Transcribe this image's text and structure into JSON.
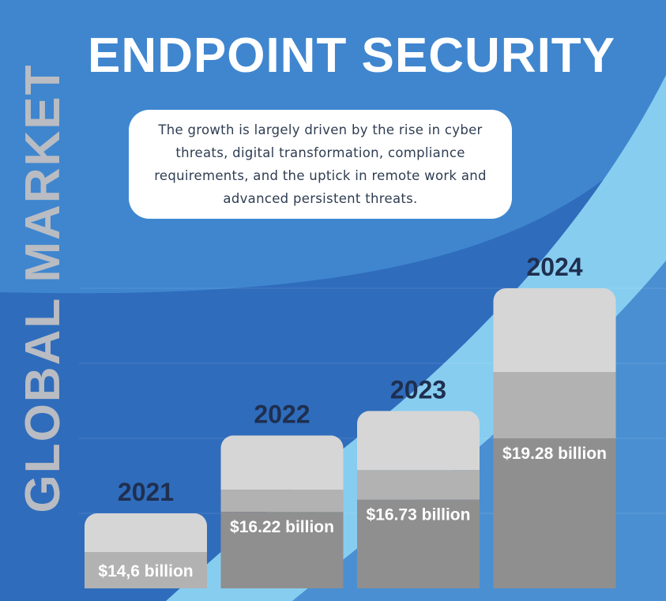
{
  "header": {
    "title": "ENDPOINT SECURITY",
    "side_label": "GLOBAL MARKET"
  },
  "callout": {
    "text": "The growth is largely driven by the rise in cyber threats, digital transformation, compliance requirements, and the uptick in remote work and advanced persistent threats."
  },
  "colors": {
    "background_dark": "#2f6cbc",
    "background_mid": "#3f86cf",
    "background_light": "#87cdf0",
    "bar_light": "#d6d6d6",
    "bar_mid": "#b2b2b2",
    "bar_dark": "#8f8f8f",
    "year_label": "#1f2f4f",
    "value_label": "#ffffff"
  },
  "chart_data": {
    "type": "bar",
    "categories": [
      "2021",
      "2022",
      "2023",
      "2024"
    ],
    "values": [
      14.6,
      16.22,
      16.73,
      19.28
    ],
    "data_labels": [
      "$14,6 billion",
      "$16.22 billion",
      "$16.73 billion",
      "$19.28 billion"
    ],
    "unit": "billion USD",
    "title": "ENDPOINT SECURITY",
    "xlabel": "",
    "ylabel": "",
    "grid": false,
    "legend": "none"
  }
}
